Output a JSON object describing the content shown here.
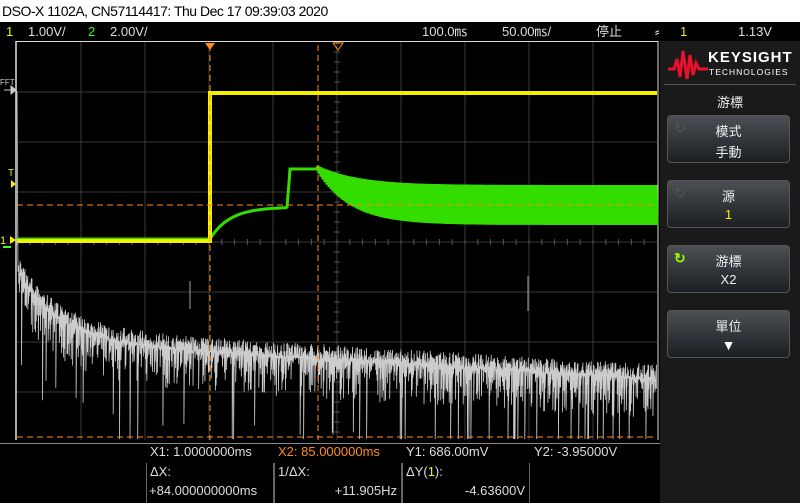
{
  "title": "DSO-X 1102A, CN57114417: Thu Dec 17 09:39:03 2020",
  "status": {
    "ch1_num": "1",
    "ch1_scale": "1.00V/",
    "ch2_num": "2",
    "ch2_scale": "2.00V/",
    "delay": "100.0㎳",
    "timebase": "50.00㎳/",
    "run_state": "停止",
    "trigger_icon": "rising-edge-icon",
    "trigger_source": "1",
    "trigger_level": "1.13V"
  },
  "plot": {
    "fft_label": "FFT",
    "trigger_marker": "T",
    "ch1_marker": "1",
    "colors": {
      "ch1": "#f4f000",
      "ch2": "#33dd00",
      "fft": "#cccccc",
      "cursor": "#ff8c1a"
    }
  },
  "sidebar": {
    "brand": "KEYSIGHT",
    "brand_sub": "TECHNOLOGIES",
    "menu_title": "游標",
    "buttons": [
      {
        "label": "模式",
        "value": "手動",
        "icon": "rotate-knob-icon",
        "active": false
      },
      {
        "label": "源",
        "value": "1",
        "icon": "rotate-knob-icon",
        "active": false
      },
      {
        "label": "游標",
        "value": "X2",
        "icon": "rotate-knob-icon",
        "active": true
      },
      {
        "label": "單位",
        "value": "",
        "icon": "arrow-down-icon",
        "active": false
      }
    ]
  },
  "measure": {
    "x1": "X1:  1.0000000ms",
    "x2": "X2:  85.000000ms",
    "y1": "Y1:  686.00mV",
    "y2": "Y2: -3.95000V",
    "dx_label": "ΔX:",
    "dx": "+84.000000000ms",
    "inv_dx_label": "1/ΔX:",
    "inv_dx": "+11.905Hz",
    "dy_label_pre": "ΔY(",
    "dy_src": "1",
    "dy_label_post": "):",
    "dy": "-4.63600V"
  }
}
